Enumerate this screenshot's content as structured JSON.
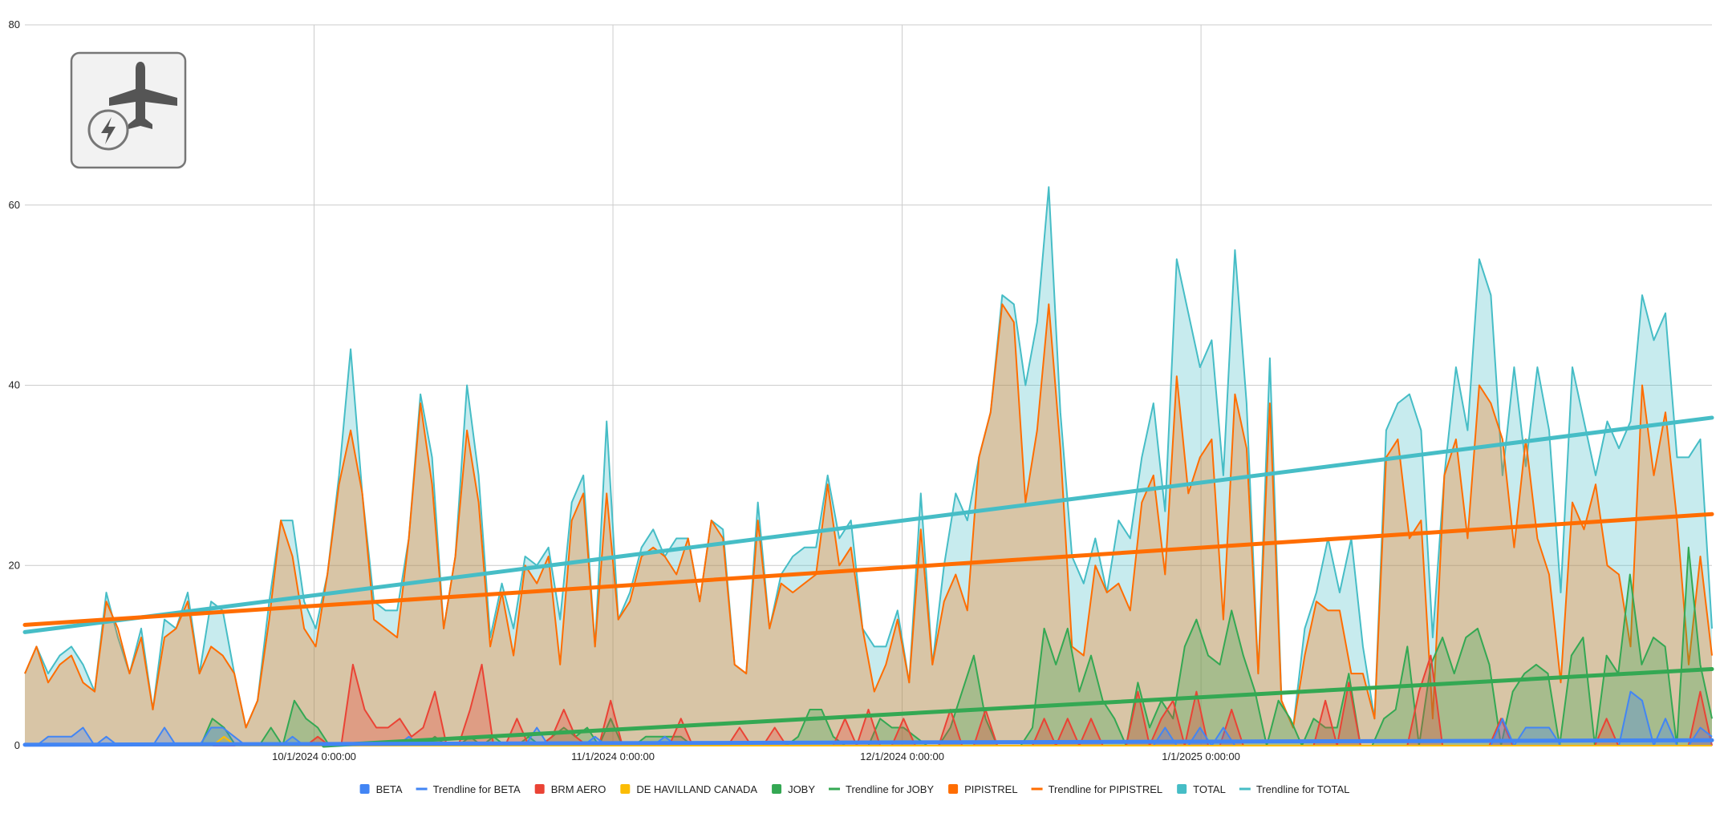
{
  "chart_data": {
    "type": "area",
    "x_start": "9/1/2024",
    "x_end": "2/23/2025",
    "x_ticks": [
      "10/1/2024 0:00:00",
      "11/1/2024 0:00:00",
      "12/1/2024 0:00:00",
      "1/1/2025 0:00:00"
    ],
    "y_ticks": [
      "0",
      "20",
      "40",
      "60",
      "80"
    ],
    "ylim": [
      0,
      80
    ],
    "grid": true,
    "legend_position": "bottom",
    "colors": {
      "BETA": "#4285f4",
      "BRM AERO": "#ea4335",
      "DE HAVILLAND CANADA": "#fbbc04",
      "JOBY": "#34a853",
      "PIPISTREL": "#ff6d01",
      "TOTAL": "#46bdc6"
    },
    "legend": [
      {
        "name": "BETA",
        "kind": "area",
        "color": "#4285f4"
      },
      {
        "name": "Trendline for BETA",
        "kind": "line",
        "color": "#4285f4"
      },
      {
        "name": "BRM AERO",
        "kind": "area",
        "color": "#ea4335"
      },
      {
        "name": "DE HAVILLAND CANADA",
        "kind": "area",
        "color": "#fbbc04"
      },
      {
        "name": "JOBY",
        "kind": "area",
        "color": "#34a853"
      },
      {
        "name": "Trendline for JOBY",
        "kind": "line",
        "color": "#34a853"
      },
      {
        "name": "PIPISTREL",
        "kind": "area",
        "color": "#ff6d01"
      },
      {
        "name": "Trendline for PIPISTREL",
        "kind": "line",
        "color": "#ff6d01"
      },
      {
        "name": "TOTAL",
        "kind": "area",
        "color": "#46bdc6"
      },
      {
        "name": "Trendline for TOTAL",
        "kind": "line",
        "color": "#46bdc6"
      }
    ],
    "series": [
      {
        "name": "TOTAL",
        "color": "#46bdc6",
        "values": [
          8,
          11,
          8,
          10,
          11,
          9,
          6,
          17,
          12,
          8,
          13,
          4,
          14,
          13,
          17,
          8,
          16,
          15,
          8,
          2,
          5,
          16,
          25,
          25,
          16,
          13,
          19,
          30,
          44,
          28,
          16,
          15,
          15,
          23,
          39,
          32,
          13,
          21,
          40,
          30,
          12,
          18,
          13,
          21,
          20,
          22,
          14,
          27,
          30,
          11,
          36,
          14,
          17,
          22,
          24,
          21,
          23,
          23,
          16,
          25,
          24,
          9,
          8,
          27,
          13,
          19,
          21,
          22,
          22,
          30,
          23,
          25,
          13,
          11,
          11,
          15,
          7,
          28,
          9,
          20,
          28,
          25,
          32,
          37,
          50,
          49,
          40,
          47,
          62,
          37,
          21,
          18,
          23,
          17,
          25,
          23,
          32,
          38,
          26,
          54,
          48,
          42,
          45,
          30,
          55,
          38,
          8,
          43,
          5,
          2,
          13,
          17,
          23,
          17,
          23,
          11,
          3,
          35,
          38,
          39,
          35,
          12,
          30,
          42,
          35,
          54,
          50,
          30,
          42,
          31,
          42,
          35,
          17,
          42,
          36,
          30,
          36,
          33,
          36,
          50,
          45,
          48,
          32,
          32,
          34,
          13
        ]
      },
      {
        "name": "PIPISTREL",
        "color": "#ff6d01",
        "values": [
          8,
          11,
          7,
          9,
          10,
          7,
          6,
          16,
          13,
          8,
          12,
          4,
          12,
          13,
          16,
          8,
          11,
          10,
          8,
          2,
          5,
          14,
          25,
          21,
          13,
          11,
          19,
          29,
          35,
          28,
          14,
          13,
          12,
          23,
          38,
          29,
          13,
          21,
          35,
          27,
          11,
          17,
          10,
          20,
          18,
          21,
          9,
          25,
          28,
          11,
          28,
          14,
          16,
          21,
          22,
          21,
          19,
          23,
          16,
          25,
          23,
          9,
          8,
          25,
          13,
          18,
          17,
          18,
          19,
          29,
          20,
          22,
          13,
          6,
          9,
          14,
          7,
          24,
          9,
          16,
          19,
          15,
          32,
          37,
          49,
          47,
          27,
          35,
          49,
          33,
          11,
          10,
          20,
          17,
          18,
          15,
          27,
          30,
          19,
          41,
          28,
          32,
          34,
          14,
          39,
          33,
          8,
          38,
          5,
          2,
          10,
          16,
          15,
          15,
          8,
          8,
          3,
          32,
          34,
          23,
          25,
          3,
          30,
          34,
          23,
          40,
          38,
          34,
          22,
          34,
          23,
          19,
          7,
          27,
          24,
          29,
          20,
          19,
          11,
          40,
          30,
          37,
          25,
          9,
          21,
          10
        ]
      },
      {
        "name": "JOBY",
        "color": "#34a853",
        "values": [
          0,
          0,
          0,
          0,
          0,
          0,
          0,
          0,
          0,
          0,
          0,
          0,
          0,
          0,
          0,
          0,
          3,
          2,
          0,
          0,
          0,
          2,
          0,
          5,
          3,
          2,
          0,
          0,
          0,
          0,
          0,
          0,
          0,
          0,
          0,
          1,
          0,
          0,
          1,
          0,
          1,
          0,
          0,
          1,
          0,
          1,
          2,
          1,
          2,
          0,
          3,
          0,
          0,
          1,
          1,
          1,
          1,
          0,
          0,
          0,
          0,
          0,
          0,
          0,
          0,
          0,
          1,
          4,
          4,
          1,
          0,
          0,
          0,
          3,
          2,
          2,
          1,
          0,
          0,
          2,
          6,
          10,
          3,
          0,
          0,
          0,
          2,
          13,
          9,
          13,
          6,
          10,
          5,
          3,
          0,
          7,
          2,
          5,
          3,
          11,
          14,
          10,
          9,
          15,
          10,
          6,
          0,
          5,
          3,
          0,
          3,
          2,
          2,
          8,
          0,
          0,
          3,
          4,
          11,
          0,
          9,
          12,
          8,
          12,
          13,
          9,
          0,
          6,
          8,
          9,
          8,
          0,
          10,
          12,
          0,
          10,
          8,
          19,
          9,
          12,
          11,
          0,
          22,
          9,
          3
        ]
      },
      {
        "name": "BRM AERO",
        "color": "#ea4335",
        "values": [
          0,
          0,
          0,
          0,
          0,
          0,
          0,
          0,
          0,
          0,
          0,
          0,
          0,
          0,
          0,
          0,
          0,
          0,
          0,
          0,
          0,
          0,
          0,
          0,
          0,
          1,
          0,
          0,
          9,
          4,
          2,
          2,
          3,
          1,
          2,
          6,
          0,
          0,
          4,
          9,
          0,
          0,
          3,
          0,
          0,
          1,
          4,
          1,
          0,
          0,
          5,
          0,
          0,
          0,
          0,
          0,
          3,
          0,
          0,
          0,
          0,
          2,
          0,
          0,
          2,
          0,
          0,
          0,
          0,
          0,
          3,
          0,
          4,
          0,
          0,
          3,
          0,
          0,
          0,
          4,
          0,
          0,
          4,
          0,
          0,
          0,
          0,
          3,
          0,
          3,
          0,
          3,
          0,
          0,
          0,
          6,
          0,
          3,
          5,
          0,
          6,
          0,
          0,
          4,
          0,
          0,
          0,
          0,
          0,
          0,
          0,
          5,
          0,
          7,
          0,
          0,
          0,
          0,
          0,
          6,
          10,
          0,
          0,
          0,
          0,
          0,
          3,
          0,
          0,
          0,
          0,
          0,
          0,
          0,
          0,
          3,
          0,
          0,
          0,
          0,
          0,
          0,
          0,
          6,
          0
        ]
      },
      {
        "name": "BETA",
        "color": "#4285f4",
        "values": [
          0,
          0,
          1,
          1,
          1,
          2,
          0,
          1,
          0,
          0,
          0,
          0,
          2,
          0,
          0,
          0,
          2,
          2,
          1,
          0,
          0,
          0,
          0,
          1,
          0,
          0,
          0,
          0,
          0,
          0,
          0,
          0,
          0,
          1,
          0,
          0,
          0,
          0,
          0,
          0,
          0,
          0,
          0,
          0,
          2,
          0,
          0,
          0,
          0,
          1,
          0,
          0,
          0,
          0,
          0,
          1,
          0,
          0,
          0,
          0,
          0,
          0,
          0,
          0,
          0,
          0,
          0,
          0,
          0,
          0,
          0,
          0,
          0,
          0,
          0,
          0,
          0,
          0,
          0,
          0,
          0,
          0,
          0,
          0,
          0,
          0,
          0,
          0,
          0,
          0,
          0,
          0,
          0,
          0,
          0,
          0,
          0,
          0,
          2,
          0,
          0,
          2,
          0,
          2,
          0,
          0,
          0,
          0,
          0,
          0,
          0,
          0,
          0,
          0,
          0,
          0,
          0,
          0,
          0,
          0,
          0,
          0,
          0,
          0,
          0,
          0,
          0,
          3,
          0,
          2,
          2,
          2,
          0,
          0,
          0,
          0,
          0,
          0,
          6,
          5,
          0,
          3,
          0,
          0,
          2,
          1
        ]
      },
      {
        "name": "DE HAVILLAND CANADA",
        "color": "#fbbc04",
        "values": [
          0,
          0,
          0,
          0,
          0,
          0,
          0,
          0,
          0,
          0,
          0,
          0,
          0,
          0,
          0,
          0,
          0,
          1,
          0,
          0,
          0,
          0,
          0,
          0,
          0,
          0,
          0,
          0,
          0,
          0,
          0,
          0,
          0,
          0,
          0,
          0,
          0,
          0,
          0,
          0,
          0,
          0,
          0,
          0,
          0,
          0,
          0,
          0,
          0,
          0,
          0,
          0,
          0,
          0,
          0,
          0,
          0,
          0,
          0,
          0,
          0,
          0,
          0,
          0,
          0,
          0,
          0,
          0,
          0,
          0,
          0,
          0,
          0,
          0,
          0,
          0,
          0,
          0,
          0,
          0,
          0,
          0,
          0,
          0,
          0,
          0,
          0,
          0,
          0,
          0,
          0,
          0,
          0,
          0,
          0,
          0,
          0,
          0,
          0,
          0,
          0,
          0,
          0,
          0,
          0,
          0,
          0,
          0,
          0,
          0,
          0,
          0,
          0,
          0,
          0,
          0,
          0,
          0,
          0,
          0,
          0,
          0,
          0,
          0,
          0,
          0,
          0,
          0,
          0,
          0,
          0,
          0,
          0,
          0,
          0,
          0,
          0,
          0,
          0,
          0,
          0,
          0,
          0,
          0,
          0
        ]
      }
    ],
    "trendlines": [
      {
        "name": "Trendline for TOTAL",
        "color": "#46bdc6",
        "from": [
          "9/1/2024",
          12.6
        ],
        "to": [
          "2/23/2025",
          36.4
        ]
      },
      {
        "name": "Trendline for PIPISTREL",
        "color": "#ff6d01",
        "from": [
          "9/1/2024",
          13.4
        ],
        "to": [
          "2/23/2025",
          25.7
        ]
      },
      {
        "name": "Trendline for JOBY",
        "color": "#34a853",
        "from": [
          "10/2/2024",
          0.0
        ],
        "to": [
          "2/23/2025",
          8.5
        ]
      },
      {
        "name": "Trendline for BETA",
        "color": "#4285f4",
        "from": [
          "9/1/2024",
          0.1
        ],
        "to": [
          "2/23/2025",
          0.6
        ]
      }
    ]
  }
}
